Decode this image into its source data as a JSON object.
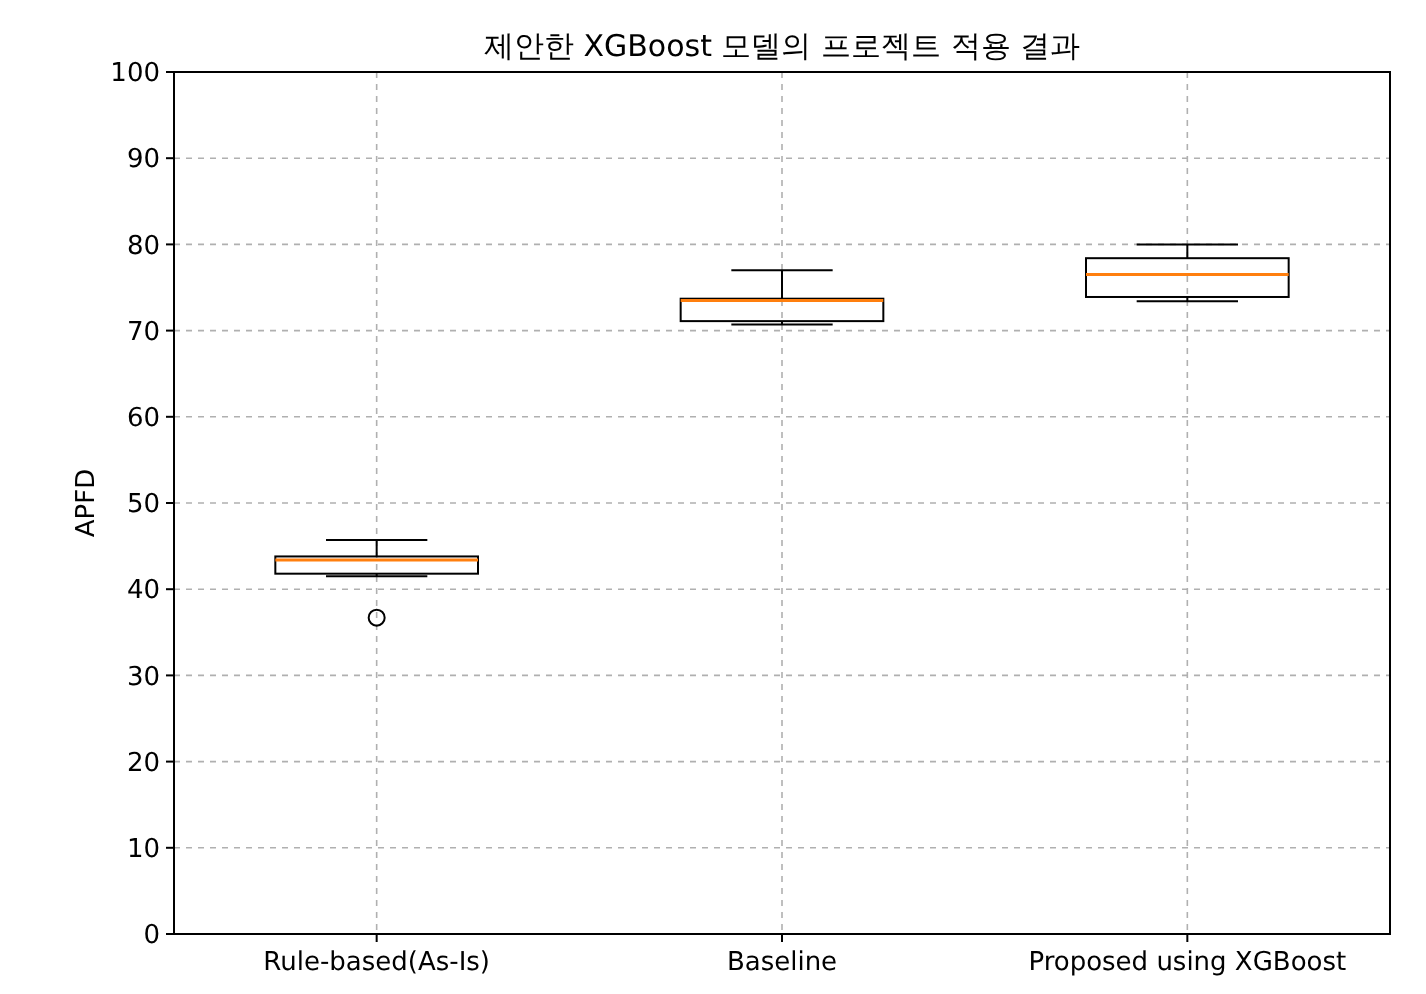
{
  "chart_data": {
    "type": "box",
    "title": "제안한 XGBoost 모델의 프로젝트 적용 결과",
    "ylabel": "APFD",
    "categories": [
      "Rule-based(As-Is)",
      "Baseline",
      "Proposed using XGBoost"
    ],
    "boxes": [
      {
        "low": 41.5,
        "q1": 41.8,
        "median": 43.4,
        "q3": 43.8,
        "high": 45.7,
        "outliers": [
          36.7
        ]
      },
      {
        "low": 70.7,
        "q1": 71.1,
        "median": 73.5,
        "q3": 73.7,
        "high": 77.0
      },
      {
        "low": 73.4,
        "q1": 73.9,
        "median": 76.5,
        "q3": 78.4,
        "high": 80.0
      }
    ],
    "ylim": [
      0,
      100
    ],
    "yticks": [
      0,
      10,
      20,
      30,
      40,
      50,
      60,
      70,
      80,
      90,
      100
    ],
    "grid": true
  }
}
